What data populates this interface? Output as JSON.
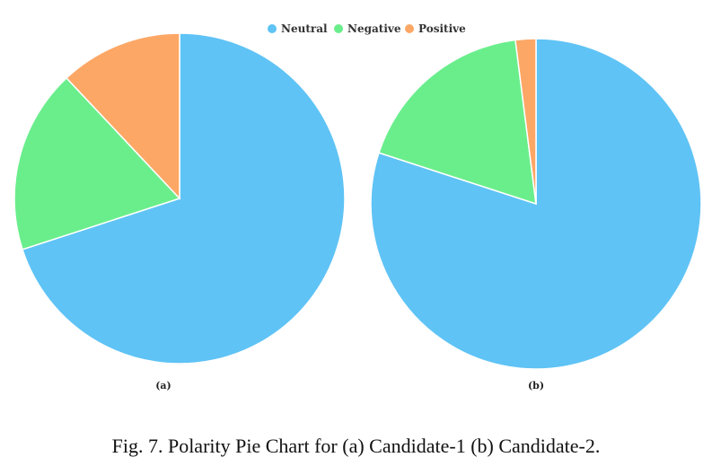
{
  "caption": "Fig. 7. Polarity Pie Chart for (a) Candidate-1 (b) Candidate-2.",
  "legend": {
    "entries": [
      "Neutral",
      "Negative",
      "Positive"
    ],
    "placement": "top-center"
  },
  "colors": {
    "Neutral": "#5fc3f5",
    "Negative": "#6aee8c",
    "Positive": "#fda766"
  },
  "chart_data": [
    {
      "type": "pie",
      "sublabel": "(a)",
      "categories": [
        "Neutral",
        "Negative",
        "Positive"
      ],
      "values": [
        70,
        18,
        12
      ],
      "start_angle_deg": 0,
      "direction": "clockwise"
    },
    {
      "type": "pie",
      "sublabel": "(b)",
      "categories": [
        "Neutral",
        "Negative",
        "Positive"
      ],
      "values": [
        80,
        18,
        2
      ],
      "start_angle_deg": 0,
      "direction": "clockwise"
    }
  ]
}
